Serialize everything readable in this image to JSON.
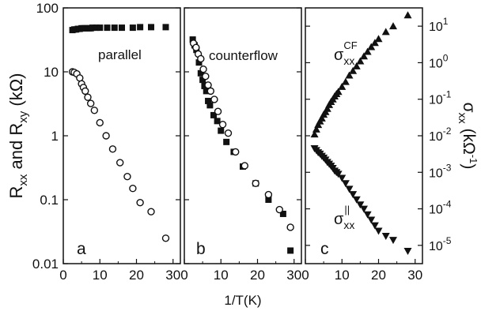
{
  "figure": {
    "xlabel": "1/T(K)",
    "left_ylabel_main": "R",
    "left_ylabel_sub1": "xx",
    "left_ylabel_mid": " and R",
    "left_ylabel_sub2": "xy",
    "left_ylabel_unit": " (kΩ)",
    "right_ylabel_sigma": "σ",
    "right_ylabel_sub": "xx",
    "right_ylabel_unit": "(kΩ",
    "right_ylabel_exp": "-1",
    "right_ylabel_close": ")"
  },
  "chart_data": [
    {
      "panel_letter": "a",
      "panel_title": "parallel",
      "type": "scatter",
      "xlim": [
        0,
        32
      ],
      "ylim_log10": [
        -2,
        2
      ],
      "log_y": true,
      "x_ticks": [
        "0",
        "10",
        "20",
        "30"
      ],
      "y_ticks": [
        {
          "value": 100,
          "label": "100"
        },
        {
          "value": 10,
          "label": "10"
        },
        {
          "value": 1,
          "label": "1"
        },
        {
          "value": 0.1,
          "label": "0.1"
        },
        {
          "value": 0.01,
          "label": "0.01"
        }
      ],
      "series": [
        {
          "marker": "filled-square",
          "points": [
            [
              2.5,
              45
            ],
            [
              3,
              46
            ],
            [
              3.5,
              46
            ],
            [
              4,
              47
            ],
            [
              4.5,
              47
            ],
            [
              5,
              48
            ],
            [
              5.5,
              48
            ],
            [
              6,
              48
            ],
            [
              6.5,
              48
            ],
            [
              7,
              48
            ],
            [
              7.5,
              48
            ],
            [
              8,
              49
            ],
            [
              9,
              49
            ],
            [
              10,
              49
            ],
            [
              12,
              49
            ],
            [
              14,
              49
            ],
            [
              16,
              49
            ],
            [
              19,
              49
            ],
            [
              21,
              50
            ],
            [
              24,
              50
            ],
            [
              28,
              50
            ]
          ]
        },
        {
          "marker": "open-circle",
          "points": [
            [
              2.5,
              10
            ],
            [
              3,
              9.8
            ],
            [
              3.7,
              9.3
            ],
            [
              4.5,
              8
            ],
            [
              5,
              6.5
            ],
            [
              5.5,
              5.7
            ],
            [
              6,
              5
            ],
            [
              6.7,
              4
            ],
            [
              7.5,
              3.2
            ],
            [
              8.5,
              2.5
            ],
            [
              10,
              1.6
            ],
            [
              11.7,
              1
            ],
            [
              13.5,
              0.62
            ],
            [
              15.5,
              0.38
            ],
            [
              17.5,
              0.23
            ],
            [
              19,
              0.15
            ],
            [
              21,
              0.09
            ],
            [
              24,
              0.065
            ],
            [
              28,
              0.025
            ]
          ]
        }
      ]
    },
    {
      "panel_letter": "b",
      "panel_title": "counterflow",
      "type": "scatter",
      "xlim": [
        0,
        32
      ],
      "ylim_log10": [
        -2,
        2
      ],
      "log_y": true,
      "x_ticks": [
        "0",
        "10",
        "20",
        "30"
      ],
      "series": [
        {
          "marker": "filled-square",
          "points": [
            [
              2.3,
              32
            ],
            [
              2.8,
              26
            ],
            [
              3.3,
              22
            ],
            [
              4,
              14
            ],
            [
              4.5,
              9.5
            ],
            [
              5,
              7.5
            ],
            [
              5.5,
              6
            ],
            [
              6,
              5
            ],
            [
              6.5,
              3.5
            ],
            [
              7,
              3
            ],
            [
              8,
              2.1
            ],
            [
              9,
              1.7
            ],
            [
              10,
              1.2
            ],
            [
              11.5,
              0.8
            ],
            [
              13.5,
              0.56
            ],
            [
              16,
              0.33
            ],
            [
              19.5,
              0.18
            ],
            [
              23,
              0.1
            ],
            [
              27,
              0.06
            ],
            [
              29,
              0.016
            ]
          ]
        },
        {
          "marker": "open-circle",
          "points": [
            [
              2.5,
              28
            ],
            [
              3.2,
              24
            ],
            [
              3.8,
              19
            ],
            [
              4.5,
              16
            ],
            [
              5.2,
              11
            ],
            [
              5.8,
              8.5
            ],
            [
              6.5,
              6.2
            ],
            [
              7.2,
              5
            ],
            [
              8.2,
              3.7
            ],
            [
              9.2,
              2.4
            ],
            [
              10.5,
              1.5
            ],
            [
              12,
              1.1
            ],
            [
              14,
              0.56
            ],
            [
              16.5,
              0.34
            ],
            [
              19.5,
              0.18
            ],
            [
              23,
              0.12
            ],
            [
              26,
              0.07
            ],
            [
              29,
              0.037
            ]
          ]
        }
      ]
    },
    {
      "panel_letter": "c",
      "type": "scatter",
      "xlim": [
        0,
        32
      ],
      "ylim_log10": [
        -5.5,
        1.5
      ],
      "log_y": true,
      "x_ticks": [
        "0",
        "10",
        "20",
        "30"
      ],
      "y_ticks": [
        {
          "value": 10,
          "mant": "10",
          "exp": "1"
        },
        {
          "value": 1,
          "mant": "10",
          "exp": "0"
        },
        {
          "value": 0.1,
          "mant": "10",
          "exp": "-1"
        },
        {
          "value": 0.01,
          "mant": "10",
          "exp": "-2"
        },
        {
          "value": 0.001,
          "mant": "10",
          "exp": "-3"
        },
        {
          "value": 0.0001,
          "mant": "10",
          "exp": "-4"
        },
        {
          "value": 1e-05,
          "mant": "10",
          "exp": "-5"
        }
      ],
      "series": [
        {
          "label_main": "σ",
          "label_sub": "xx",
          "label_sup": "CF",
          "marker": "filled-up-triangle",
          "points": [
            [
              2.5,
              0.011
            ],
            [
              3,
              0.015
            ],
            [
              3.5,
              0.02
            ],
            [
              4,
              0.025
            ],
            [
              4.5,
              0.03
            ],
            [
              5,
              0.038
            ],
            [
              5.5,
              0.045
            ],
            [
              6,
              0.055
            ],
            [
              6.5,
              0.07
            ],
            [
              7,
              0.085
            ],
            [
              7.5,
              0.1
            ],
            [
              8,
              0.12
            ],
            [
              8.5,
              0.14
            ],
            [
              9,
              0.16
            ],
            [
              10,
              0.22
            ],
            [
              11,
              0.3
            ],
            [
              12,
              0.45
            ],
            [
              13,
              0.6
            ],
            [
              14,
              0.8
            ],
            [
              15,
              1.1
            ],
            [
              16,
              1.5
            ],
            [
              17,
              2
            ],
            [
              18,
              2.7
            ],
            [
              19,
              3.5
            ],
            [
              20,
              4.5
            ],
            [
              22,
              7
            ],
            [
              24,
              10
            ],
            [
              28,
              20
            ]
          ]
        },
        {
          "label_main": "σ",
          "label_sub": "xx",
          "label_sup": "||",
          "marker": "filled-down-triangle",
          "points": [
            [
              2.5,
              0.0045
            ],
            [
              3,
              0.004
            ],
            [
              3.5,
              0.0035
            ],
            [
              4,
              0.0032
            ],
            [
              4.5,
              0.0028
            ],
            [
              5,
              0.0025
            ],
            [
              5.5,
              0.0022
            ],
            [
              6,
              0.0019
            ],
            [
              6.5,
              0.0017
            ],
            [
              7,
              0.0015
            ],
            [
              7.5,
              0.0013
            ],
            [
              8,
              0.0011
            ],
            [
              8.5,
              0.001
            ],
            [
              9,
              0.0009
            ],
            [
              10,
              0.0007
            ],
            [
              11,
              0.0005
            ],
            [
              12,
              0.00035
            ],
            [
              13,
              0.00025
            ],
            [
              14,
              0.00018
            ],
            [
              15,
              0.00013
            ],
            [
              16,
              0.0001
            ],
            [
              17,
              7e-05
            ],
            [
              18,
              5e-05
            ],
            [
              19,
              3.5e-05
            ],
            [
              20,
              2.5e-05
            ],
            [
              22,
              1.8e-05
            ],
            [
              24,
              1.4e-05
            ],
            [
              28,
              7e-06
            ]
          ]
        }
      ]
    }
  ]
}
